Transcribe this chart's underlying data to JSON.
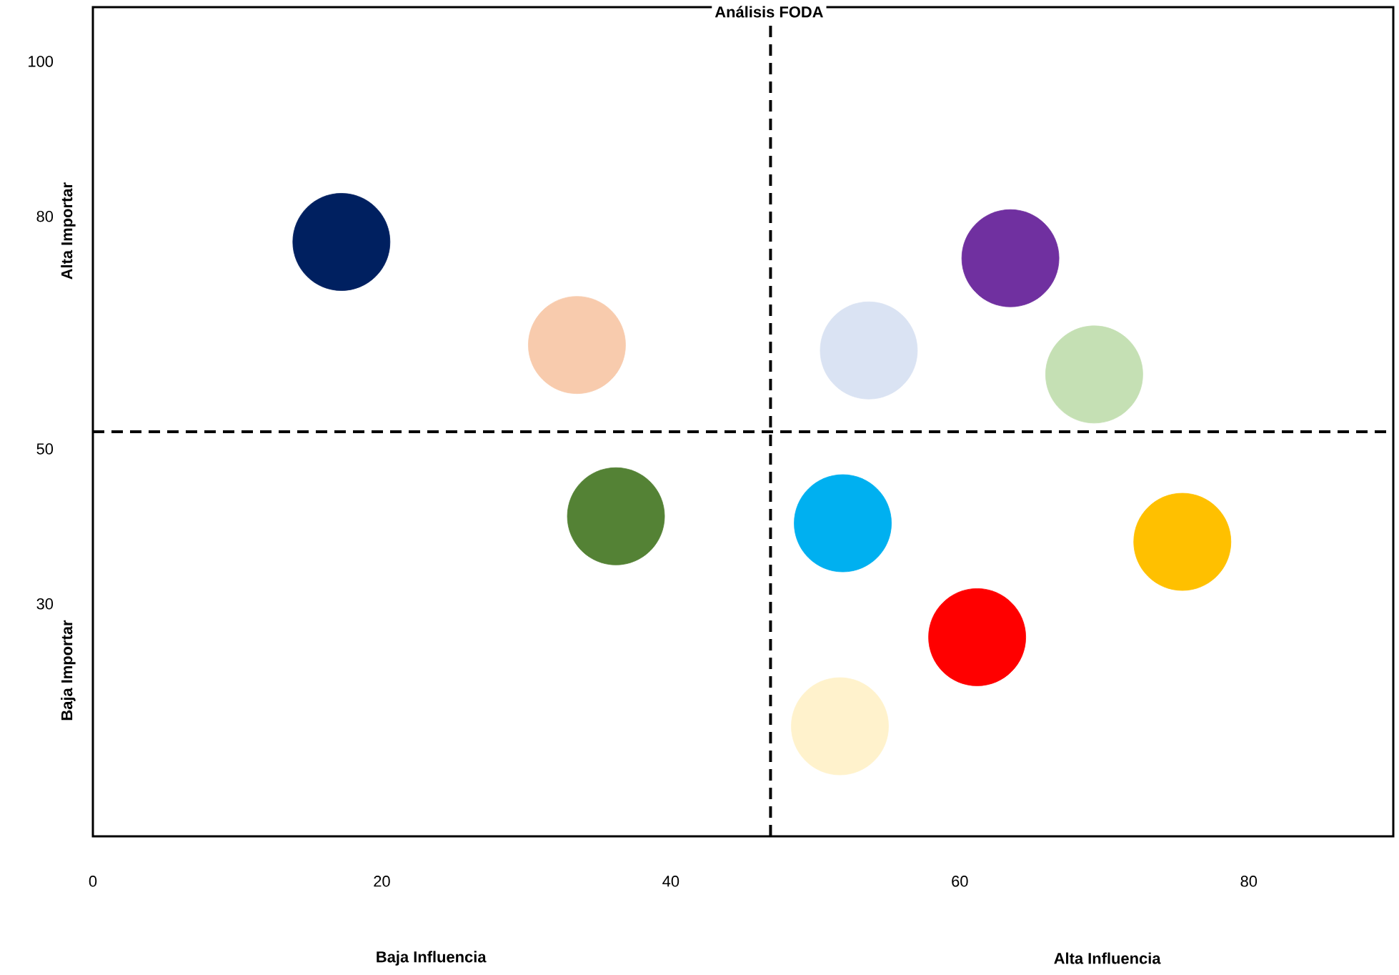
{
  "chart_data": {
    "type": "bubble",
    "title": "Análisis FODA",
    "annotations": [
      "Baja Influencia",
      "Alta Influencia",
      "Alta Importar",
      "Baja Importar"
    ],
    "x": [
      17.2,
      33.5,
      36.2,
      53.7,
      63.5,
      69.3,
      51.9,
      75.4,
      61.2,
      51.7
    ],
    "values": [
      76.7,
      63.4,
      41.3,
      62.7,
      74.6,
      59.6,
      40.4,
      38.0,
      25.7,
      14.2
    ],
    "sizes": [
      1,
      1,
      1,
      1,
      1,
      1,
      1,
      1,
      1,
      1
    ],
    "colors": [
      "#002060",
      "#f8cbad",
      "#548235",
      "#dae3f3",
      "#7030a0",
      "#c5e0b4",
      "#00b0f0",
      "#ffc000",
      "#ff0000",
      "#fff2cc"
    ],
    "xlim": [
      0,
      90
    ],
    "ylim": [
      0,
      107
    ],
    "xticks": [
      0,
      20,
      40,
      60,
      80
    ],
    "yticks": [
      30,
      50,
      80,
      100
    ],
    "ref_lines": [
      {
        "axis": "x",
        "value": 46.9,
        "line_style": "dashed",
        "color": "#000000"
      },
      {
        "axis": "y",
        "value": 52.2,
        "line_style": "dashed",
        "color": "#000000"
      }
    ],
    "grid": false
  }
}
